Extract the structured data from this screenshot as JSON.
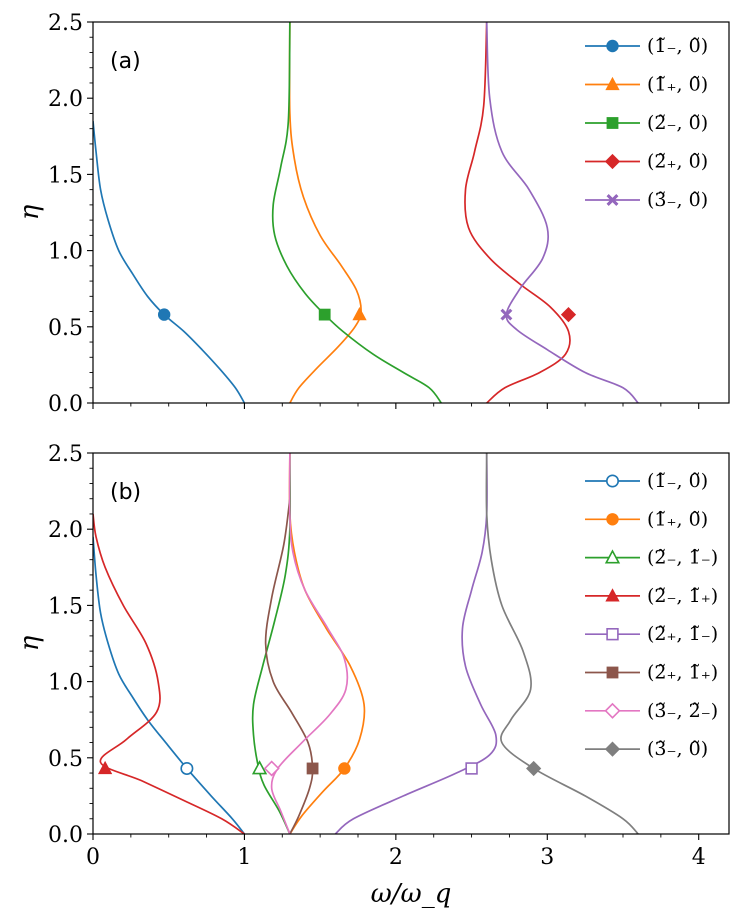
{
  "figure": {
    "xlabel": "ω/ω_q",
    "ylabel": "η"
  },
  "colors": {
    "blue": "#1f77b4",
    "orange": "#ff7f0e",
    "green": "#2ca02c",
    "red": "#d62728",
    "purple": "#9467bd",
    "brown": "#8c564b",
    "pink": "#e377c2",
    "gray": "#7f7f7f"
  },
  "chart_data": [
    {
      "type": "line",
      "panel_label": "(a)",
      "xlabel": "ω/ω_q",
      "ylabel": "η",
      "xlim": [
        0,
        4.2
      ],
      "ylim": [
        0,
        2.5
      ],
      "xticks": [
        "0",
        "1",
        "2",
        "3",
        "4"
      ],
      "yticks": [
        "0.0",
        "0.5",
        "1.0",
        "1.5",
        "2.0",
        "2.5"
      ],
      "legend_position": "top-right",
      "series": [
        {
          "name": "(1̃₋, 0̃)",
          "color": "blue",
          "marker": "circle",
          "filled": true,
          "marker_point": [
            0.47,
            0.58
          ],
          "x": [
            1.0,
            0.94,
            0.84,
            0.72,
            0.6,
            0.47,
            0.36,
            0.26,
            0.17,
            0.1,
            0.05,
            0.02,
            0.0
          ],
          "y": [
            0.0,
            0.1,
            0.22,
            0.35,
            0.47,
            0.58,
            0.7,
            0.85,
            1.0,
            1.2,
            1.4,
            1.65,
            1.85
          ]
        },
        {
          "name": "(1̃₊, 0̃)",
          "color": "orange",
          "marker": "triangle",
          "filled": true,
          "marker_point": [
            1.76,
            0.58
          ],
          "x": [
            1.3,
            1.36,
            1.48,
            1.62,
            1.73,
            1.77,
            1.74,
            1.64,
            1.5,
            1.39,
            1.33,
            1.3,
            1.3
          ],
          "y": [
            0.0,
            0.1,
            0.23,
            0.37,
            0.5,
            0.6,
            0.74,
            0.9,
            1.1,
            1.35,
            1.6,
            1.9,
            2.5
          ]
        },
        {
          "name": "(2̃₋, 0̃)",
          "color": "green",
          "marker": "square",
          "filled": true,
          "marker_point": [
            1.53,
            0.58
          ],
          "x": [
            2.3,
            2.22,
            2.05,
            1.85,
            1.65,
            1.53,
            1.4,
            1.28,
            1.2,
            1.19,
            1.24,
            1.29,
            1.3
          ],
          "y": [
            0.0,
            0.1,
            0.2,
            0.32,
            0.47,
            0.58,
            0.72,
            0.9,
            1.1,
            1.3,
            1.55,
            1.85,
            2.5
          ]
        },
        {
          "name": "(2̃₊, 0̃)",
          "color": "red",
          "marker": "diamond",
          "filled": true,
          "marker_point": [
            3.14,
            0.58
          ],
          "x": [
            2.6,
            2.72,
            2.95,
            3.12,
            3.14,
            3.02,
            2.82,
            2.62,
            2.48,
            2.46,
            2.52,
            2.58,
            2.6
          ],
          "y": [
            0.0,
            0.1,
            0.2,
            0.32,
            0.47,
            0.63,
            0.78,
            0.95,
            1.15,
            1.4,
            1.65,
            1.95,
            2.5
          ]
        },
        {
          "name": "(3̃₋, 0̃)",
          "color": "purple",
          "marker": "x",
          "filled": true,
          "marker_point": [
            2.73,
            0.58
          ],
          "x": [
            3.6,
            3.5,
            3.25,
            3.0,
            2.8,
            2.73,
            2.82,
            2.97,
            3.0,
            2.88,
            2.7,
            2.62,
            2.6
          ],
          "y": [
            0.0,
            0.1,
            0.2,
            0.35,
            0.48,
            0.58,
            0.75,
            0.95,
            1.15,
            1.4,
            1.65,
            2.0,
            2.5
          ]
        }
      ]
    },
    {
      "type": "line",
      "panel_label": "(b)",
      "xlabel": "ω/ω_q",
      "ylabel": "η",
      "xlim": [
        0,
        4.2
      ],
      "ylim": [
        0,
        2.5
      ],
      "xticks": [
        "0",
        "1",
        "2",
        "3",
        "4"
      ],
      "yticks": [
        "0.0",
        "0.5",
        "1.0",
        "1.5",
        "2.0",
        "2.5"
      ],
      "legend_position": "top-right",
      "series": [
        {
          "name": "(1̃₋, 0̃)",
          "color": "blue",
          "marker": "circle",
          "filled": false,
          "marker_point": [
            0.62,
            0.43
          ],
          "x": [
            1.0,
            0.92,
            0.78,
            0.62,
            0.48,
            0.36,
            0.26,
            0.17,
            0.1,
            0.05,
            0.02,
            0.0
          ],
          "y": [
            0.0,
            0.1,
            0.25,
            0.43,
            0.6,
            0.75,
            0.9,
            1.05,
            1.25,
            1.45,
            1.7,
            1.95
          ]
        },
        {
          "name": "(1̃₊, 0̃)",
          "color": "orange",
          "marker": "circle",
          "filled": true,
          "marker_point": [
            1.66,
            0.43
          ],
          "x": [
            1.3,
            1.38,
            1.52,
            1.66,
            1.76,
            1.79,
            1.7,
            1.54,
            1.4,
            1.33,
            1.3,
            1.3
          ],
          "y": [
            0.0,
            0.12,
            0.28,
            0.43,
            0.62,
            0.85,
            1.1,
            1.35,
            1.6,
            1.85,
            2.1,
            2.5
          ]
        },
        {
          "name": "(2̃₋, 1̃₋)",
          "color": "green",
          "marker": "triangle",
          "filled": false,
          "marker_point": [
            1.1,
            0.43
          ],
          "x": [
            1.3,
            1.23,
            1.13,
            1.09,
            1.06,
            1.06,
            1.12,
            1.2,
            1.27,
            1.3,
            1.3
          ],
          "y": [
            0.0,
            0.15,
            0.32,
            0.45,
            0.65,
            0.85,
            1.1,
            1.4,
            1.7,
            2.0,
            2.5
          ]
        },
        {
          "name": "(2̃₋, 1̃₊)",
          "color": "red",
          "marker": "triangle",
          "filled": true,
          "marker_point": [
            0.08,
            0.43
          ],
          "x": [
            1.0,
            0.85,
            0.6,
            0.32,
            0.05,
            0.22,
            0.42,
            0.43,
            0.35,
            0.2,
            0.08,
            0.02,
            0.0
          ],
          "y": [
            0.0,
            0.1,
            0.22,
            0.35,
            0.47,
            0.62,
            0.8,
            1.0,
            1.25,
            1.5,
            1.75,
            1.95,
            2.1
          ]
        },
        {
          "name": "(2̃₊, 1̃₋)",
          "color": "purple",
          "marker": "square",
          "filled": false,
          "marker_point": [
            2.5,
            0.43
          ],
          "x": [
            1.6,
            1.72,
            2.05,
            2.4,
            2.62,
            2.66,
            2.56,
            2.46,
            2.44,
            2.5,
            2.57,
            2.6,
            2.6
          ],
          "y": [
            0.0,
            0.1,
            0.25,
            0.4,
            0.52,
            0.65,
            0.85,
            1.1,
            1.35,
            1.6,
            1.85,
            2.1,
            2.5
          ]
        },
        {
          "name": "(2̃₊, 1̃₊)",
          "color": "brown",
          "marker": "square",
          "filled": true,
          "marker_point": [
            1.45,
            0.43
          ],
          "x": [
            1.3,
            1.36,
            1.43,
            1.45,
            1.42,
            1.31,
            1.19,
            1.14,
            1.18,
            1.26,
            1.3
          ],
          "y": [
            0.0,
            0.12,
            0.3,
            0.43,
            0.6,
            0.8,
            1.0,
            1.25,
            1.55,
            1.9,
            2.2
          ]
        },
        {
          "name": "(3̃₋, 2̃₋)",
          "color": "pink",
          "marker": "diamond",
          "filled": false,
          "marker_point": [
            1.18,
            0.43
          ],
          "x": [
            1.3,
            1.24,
            1.18,
            1.22,
            1.38,
            1.56,
            1.67,
            1.66,
            1.55,
            1.4,
            1.32,
            1.3,
            1.3
          ],
          "y": [
            0.0,
            0.15,
            0.3,
            0.43,
            0.6,
            0.78,
            0.95,
            1.15,
            1.35,
            1.6,
            1.85,
            2.1,
            2.5
          ]
        },
        {
          "name": "(3̃₋, 0̃)",
          "color": "gray",
          "marker": "diamond",
          "filled": true,
          "marker_point": [
            2.91,
            0.43
          ],
          "x": [
            3.6,
            3.5,
            3.25,
            2.91,
            2.7,
            2.76,
            2.89,
            2.84,
            2.7,
            2.63,
            2.6,
            2.6
          ],
          "y": [
            0.0,
            0.1,
            0.25,
            0.43,
            0.6,
            0.75,
            0.95,
            1.2,
            1.5,
            1.8,
            2.1,
            2.5
          ]
        }
      ]
    }
  ]
}
